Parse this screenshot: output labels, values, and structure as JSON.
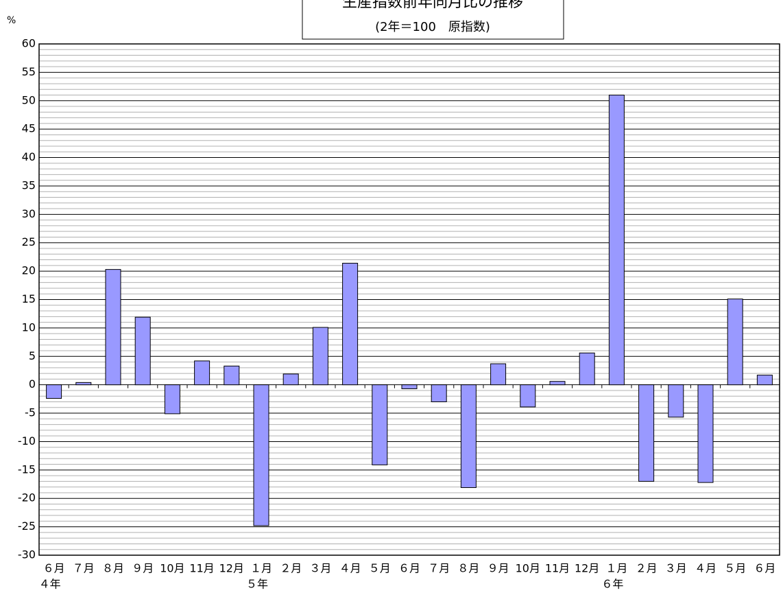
{
  "chart_data": {
    "type": "bar",
    "title": "生産指数前年同月比の推移",
    "subtitle": "(2年＝100　原指数)",
    "y_label": "%",
    "categories": [
      "６月",
      "７月",
      "８月",
      "９月",
      "10月",
      "11月",
      "12月",
      "１月",
      "２月",
      "３月",
      "４月",
      "５月",
      "６月",
      "７月",
      "８月",
      "９月",
      "10月",
      "11月",
      "12月",
      "１月",
      "２月",
      "３月",
      "４月",
      "５月",
      "６月"
    ],
    "year_labels": [
      "４年",
      null,
      null,
      null,
      null,
      null,
      null,
      "５年",
      null,
      null,
      null,
      null,
      null,
      null,
      null,
      null,
      null,
      null,
      null,
      "６年",
      null,
      null,
      null,
      null,
      null
    ],
    "values": [
      -2.4,
      0.4,
      20.3,
      11.9,
      -5.1,
      4.2,
      3.3,
      -24.8,
      1.9,
      10.1,
      21.4,
      -14.1,
      -0.7,
      -3.0,
      -18.1,
      3.7,
      -3.9,
      0.6,
      5.6,
      51.0,
      -17.0,
      -5.7,
      -17.2,
      15.1,
      1.7
    ],
    "color": "#9999ff",
    "ylim": [
      -30,
      60
    ],
    "yticks": [
      -30,
      -25,
      -20,
      -15,
      -10,
      -5,
      0,
      5,
      10,
      15,
      20,
      25,
      30,
      35,
      40,
      45,
      50,
      55,
      60
    ],
    "grid": true
  }
}
